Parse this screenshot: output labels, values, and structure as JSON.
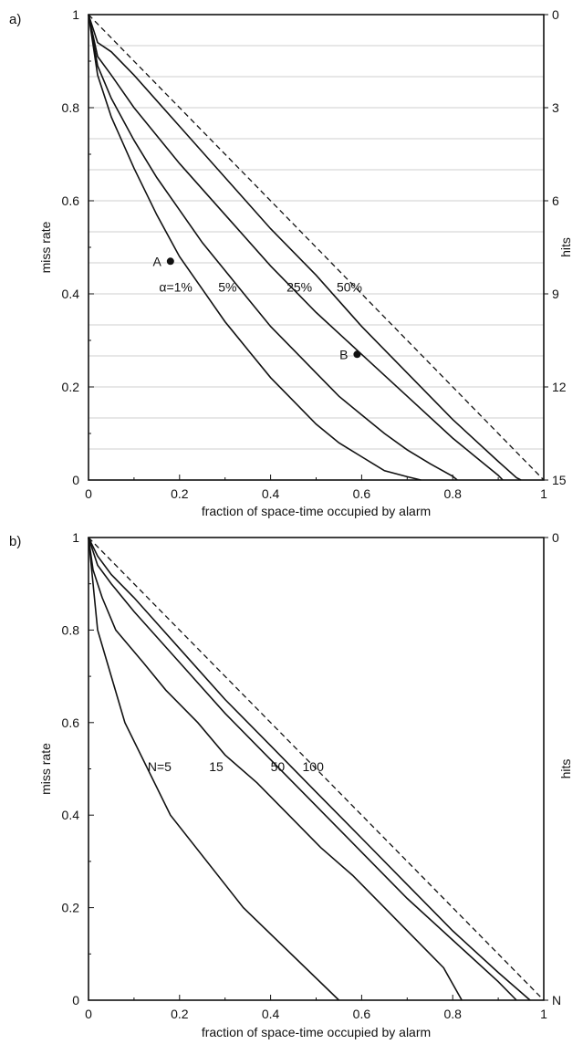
{
  "chart_data": [
    {
      "panel_label": "a)",
      "type": "line",
      "xlabel": "fraction of space-time occupied by alarm",
      "ylabel": "miss rate",
      "ylabel_right": "hits",
      "xlim": [
        0,
        1
      ],
      "ylim": [
        0,
        1
      ],
      "x_ticks": [
        "0",
        "0.2",
        "0.4",
        "0.6",
        "0.8",
        "1"
      ],
      "y_ticks": [
        "0",
        "0.2",
        "0.4",
        "0.6",
        "0.8",
        "1"
      ],
      "right_ticks": [
        "0",
        "3",
        "6",
        "9",
        "12",
        "15"
      ],
      "right_tick_values": [
        1,
        0.8,
        0.6,
        0.4,
        0.2,
        0
      ],
      "hgrid_count": 15,
      "series": [
        {
          "name": "α=1%",
          "points": [
            [
              0,
              1
            ],
            [
              0.02,
              0.87
            ],
            [
              0.05,
              0.78
            ],
            [
              0.1,
              0.67
            ],
            [
              0.15,
              0.57
            ],
            [
              0.2,
              0.48
            ],
            [
              0.25,
              0.41
            ],
            [
              0.3,
              0.34
            ],
            [
              0.35,
              0.28
            ],
            [
              0.4,
              0.22
            ],
            [
              0.45,
              0.17
            ],
            [
              0.5,
              0.12
            ],
            [
              0.55,
              0.08
            ],
            [
              0.6,
              0.05
            ],
            [
              0.65,
              0.02
            ],
            [
              0.7,
              0.007
            ],
            [
              0.73,
              0
            ]
          ]
        },
        {
          "name": "5%",
          "points": [
            [
              0,
              1
            ],
            [
              0.02,
              0.89
            ],
            [
              0.05,
              0.82
            ],
            [
              0.1,
              0.73
            ],
            [
              0.15,
              0.65
            ],
            [
              0.2,
              0.58
            ],
            [
              0.25,
              0.51
            ],
            [
              0.3,
              0.45
            ],
            [
              0.35,
              0.39
            ],
            [
              0.4,
              0.33
            ],
            [
              0.45,
              0.28
            ],
            [
              0.5,
              0.23
            ],
            [
              0.55,
              0.18
            ],
            [
              0.6,
              0.14
            ],
            [
              0.65,
              0.1
            ],
            [
              0.7,
              0.065
            ],
            [
              0.75,
              0.035
            ],
            [
              0.8,
              0.008
            ],
            [
              0.81,
              0
            ]
          ]
        },
        {
          "name": "25%",
          "points": [
            [
              0,
              1
            ],
            [
              0.02,
              0.91
            ],
            [
              0.05,
              0.87
            ],
            [
              0.1,
              0.8
            ],
            [
              0.2,
              0.68
            ],
            [
              0.3,
              0.57
            ],
            [
              0.4,
              0.46
            ],
            [
              0.5,
              0.36
            ],
            [
              0.6,
              0.27
            ],
            [
              0.7,
              0.18
            ],
            [
              0.8,
              0.09
            ],
            [
              0.85,
              0.05
            ],
            [
              0.9,
              0.01
            ],
            [
              0.91,
              0
            ]
          ]
        },
        {
          "name": "50%",
          "points": [
            [
              0,
              1
            ],
            [
              0.02,
              0.94
            ],
            [
              0.05,
              0.92
            ],
            [
              0.1,
              0.87
            ],
            [
              0.2,
              0.76
            ],
            [
              0.3,
              0.65
            ],
            [
              0.4,
              0.54
            ],
            [
              0.5,
              0.44
            ],
            [
              0.6,
              0.33
            ],
            [
              0.7,
              0.23
            ],
            [
              0.8,
              0.13
            ],
            [
              0.9,
              0.04
            ],
            [
              0.94,
              0.005
            ],
            [
              0.95,
              0
            ]
          ]
        }
      ],
      "diagonal": true,
      "curve_labels": [
        {
          "text": "α=1%",
          "x": 0.155,
          "y": 0.405
        },
        {
          "text": "5%",
          "x": 0.285,
          "y": 0.405
        },
        {
          "text": "25%",
          "x": 0.435,
          "y": 0.405
        },
        {
          "text": "50%",
          "x": 0.545,
          "y": 0.405
        }
      ],
      "points": [
        {
          "name": "A",
          "x": 0.18,
          "y": 0.47
        },
        {
          "name": "B",
          "x": 0.59,
          "y": 0.27
        }
      ]
    },
    {
      "panel_label": "b)",
      "type": "line",
      "xlabel": "fraction of space-time occupied by alarm",
      "ylabel": "miss rate",
      "ylabel_right": "hits",
      "xlim": [
        0,
        1
      ],
      "ylim": [
        0,
        1
      ],
      "x_ticks": [
        "0",
        "0.2",
        "0.4",
        "0.6",
        "0.8",
        "1"
      ],
      "y_ticks": [
        "0",
        "0.2",
        "0.4",
        "0.6",
        "0.8",
        "1"
      ],
      "right_ticks": [
        "0",
        "N"
      ],
      "right_tick_values": [
        1,
        0
      ],
      "hgrid_count": 0,
      "series": [
        {
          "name": "N=5",
          "points": [
            [
              0,
              1
            ],
            [
              0.02,
              0.8
            ],
            [
              0.08,
              0.6
            ],
            [
              0.18,
              0.4
            ],
            [
              0.34,
              0.2
            ],
            [
              0.55,
              0
            ]
          ]
        },
        {
          "name": "15",
          "points": [
            [
              0,
              1
            ],
            [
              0.01,
              0.93
            ],
            [
              0.03,
              0.87
            ],
            [
              0.06,
              0.8
            ],
            [
              0.12,
              0.73
            ],
            [
              0.17,
              0.67
            ],
            [
              0.24,
              0.6
            ],
            [
              0.3,
              0.53
            ],
            [
              0.37,
              0.47
            ],
            [
              0.44,
              0.4
            ],
            [
              0.51,
              0.33
            ],
            [
              0.58,
              0.27
            ],
            [
              0.65,
              0.2
            ],
            [
              0.72,
              0.13
            ],
            [
              0.78,
              0.07
            ],
            [
              0.82,
              0
            ]
          ]
        },
        {
          "name": "50",
          "points": [
            [
              0,
              1
            ],
            [
              0.02,
              0.94
            ],
            [
              0.05,
              0.9
            ],
            [
              0.1,
              0.84
            ],
            [
              0.2,
              0.73
            ],
            [
              0.3,
              0.62
            ],
            [
              0.4,
              0.52
            ],
            [
              0.5,
              0.42
            ],
            [
              0.6,
              0.32
            ],
            [
              0.7,
              0.22
            ],
            [
              0.8,
              0.13
            ],
            [
              0.9,
              0.04
            ],
            [
              0.94,
              0
            ]
          ]
        },
        {
          "name": "100",
          "points": [
            [
              0,
              1
            ],
            [
              0.02,
              0.96
            ],
            [
              0.05,
              0.92
            ],
            [
              0.1,
              0.87
            ],
            [
              0.2,
              0.76
            ],
            [
              0.3,
              0.65
            ],
            [
              0.4,
              0.55
            ],
            [
              0.5,
              0.45
            ],
            [
              0.6,
              0.35
            ],
            [
              0.7,
              0.25
            ],
            [
              0.8,
              0.15
            ],
            [
              0.9,
              0.06
            ],
            [
              0.97,
              0
            ]
          ]
        }
      ],
      "diagonal": true,
      "curve_labels": [
        {
          "text": "N=5",
          "x": 0.13,
          "y": 0.495
        },
        {
          "text": "15",
          "x": 0.265,
          "y": 0.495
        },
        {
          "text": "50",
          "x": 0.4,
          "y": 0.495
        },
        {
          "text": "100",
          "x": 0.47,
          "y": 0.495
        }
      ],
      "points": []
    }
  ]
}
